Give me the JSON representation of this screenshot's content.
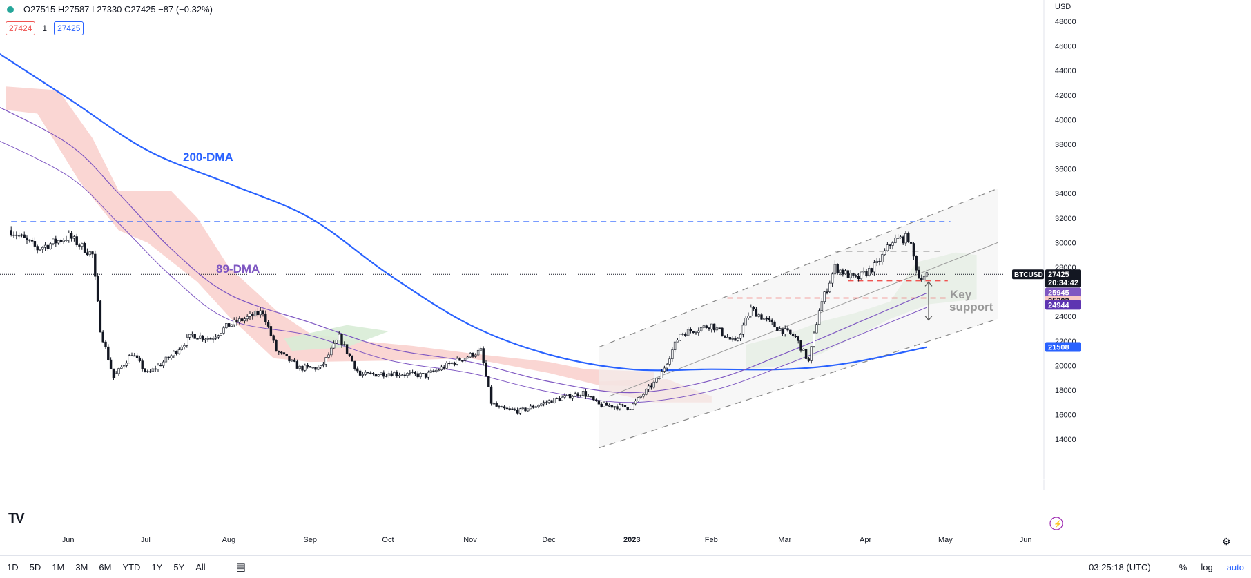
{
  "header": {
    "ohlc": "O27515 H27587 L27330 C27425 −87 (−0.32%)",
    "bid": "27424",
    "qty": "1",
    "ask": "27425"
  },
  "axis": {
    "currency": "USD",
    "price_ticks": [
      "48000",
      "46000",
      "44000",
      "42000",
      "40000",
      "38000",
      "36000",
      "34000",
      "32000",
      "30000",
      "28000",
      "26000",
      "24000",
      "22000",
      "20000",
      "18000",
      "16000",
      "14000"
    ],
    "month_labels": [
      "Jun",
      "Jul",
      "Aug",
      "Sep",
      "Oct",
      "Nov",
      "Dec",
      "2023",
      "Feb",
      "Mar",
      "Apr",
      "May",
      "Jun"
    ]
  },
  "price_tags": {
    "symbol": "BTCUSD",
    "last": "27425",
    "countdown": "20:34:42",
    "tag_89": "25945",
    "tag_cloud": "25302",
    "tag_cloud_b": "24944",
    "tag_200": "21508"
  },
  "annotations": {
    "dma200": "200-DMA",
    "dma89": "89-DMA",
    "key_support": [
      "Key",
      "support"
    ]
  },
  "bottom": {
    "ranges": [
      "1D",
      "5D",
      "1M",
      "3M",
      "6M",
      "YTD",
      "1Y",
      "5Y",
      "All"
    ],
    "clock": "03:25:18 (UTC)",
    "percent": "%",
    "log": "log",
    "auto": "auto"
  },
  "colors": {
    "up": "#26a69a",
    "down": "#131722",
    "dma200": "#2962ff",
    "dma89": "#7e57c2",
    "cloud_bear": "#f8c8c4",
    "cloud_bull": "#d8ecd6",
    "level_blue": "#2962ff",
    "level_red": "#ef5350"
  },
  "chart_data": {
    "type": "candlestick",
    "symbol": "BTCUSD",
    "ylim": [
      13000,
      49000
    ],
    "price_scale": "linear",
    "key_levels": {
      "resistance_blue": 31700,
      "support_red_upper": 26900,
      "support_red_lower": 25500,
      "channel_mid_lower": 29300
    },
    "close_path": [
      [
        "2022-05-10",
        31000
      ],
      [
        "2022-05-20",
        29500
      ],
      [
        "2022-06-01",
        30500
      ],
      [
        "2022-06-10",
        29000
      ],
      [
        "2022-06-13",
        23000
      ],
      [
        "2022-06-18",
        19000
      ],
      [
        "2022-06-25",
        21000
      ],
      [
        "2022-07-01",
        19300
      ],
      [
        "2022-07-10",
        20800
      ],
      [
        "2022-07-18",
        22500
      ],
      [
        "2022-07-25",
        22200
      ],
      [
        "2022-08-01",
        23300
      ],
      [
        "2022-08-14",
        24400
      ],
      [
        "2022-08-19",
        21200
      ],
      [
        "2022-08-28",
        19800
      ],
      [
        "2022-09-05",
        19800
      ],
      [
        "2022-09-12",
        22300
      ],
      [
        "2022-09-20",
        19200
      ],
      [
        "2022-10-01",
        19400
      ],
      [
        "2022-10-15",
        19200
      ],
      [
        "2022-10-26",
        20300
      ],
      [
        "2022-11-05",
        21200
      ],
      [
        "2022-11-09",
        17000
      ],
      [
        "2022-11-12",
        16500
      ],
      [
        "2022-11-20",
        16300
      ],
      [
        "2022-12-01",
        17100
      ],
      [
        "2022-12-14",
        17800
      ],
      [
        "2022-12-20",
        16800
      ],
      [
        "2023-01-01",
        16600
      ],
      [
        "2023-01-12",
        19000
      ],
      [
        "2023-01-20",
        22600
      ],
      [
        "2023-02-01",
        23300
      ],
      [
        "2023-02-10",
        21800
      ],
      [
        "2023-02-16",
        24600
      ],
      [
        "2023-02-25",
        23200
      ],
      [
        "2023-03-05",
        22300
      ],
      [
        "2023-03-10",
        20300
      ],
      [
        "2023-03-14",
        24600
      ],
      [
        "2023-03-20",
        28000
      ],
      [
        "2023-03-28",
        27000
      ],
      [
        "2023-04-05",
        28200
      ],
      [
        "2023-04-11",
        30200
      ],
      [
        "2023-04-17",
        30400
      ],
      [
        "2023-04-21",
        27200
      ],
      [
        "2023-04-24",
        27425
      ]
    ],
    "series": [
      {
        "name": "200-DMA",
        "values": [
          [
            "2022-05-01",
            46000
          ],
          [
            "2022-06-01",
            41700
          ],
          [
            "2022-07-01",
            37500
          ],
          [
            "2022-08-01",
            34800
          ],
          [
            "2022-09-01",
            32000
          ],
          [
            "2022-10-01",
            27400
          ],
          [
            "2022-11-01",
            23300
          ],
          [
            "2022-12-01",
            20900
          ],
          [
            "2023-01-01",
            19700
          ],
          [
            "2023-02-01",
            19700
          ],
          [
            "2023-03-01",
            19700
          ],
          [
            "2023-03-25",
            20200
          ],
          [
            "2023-04-24",
            21500
          ]
        ]
      },
      {
        "name": "89-DMA",
        "values": [
          [
            "2022-05-01",
            41500
          ],
          [
            "2022-06-01",
            38000
          ],
          [
            "2022-06-20",
            34000
          ],
          [
            "2022-07-10",
            29500
          ],
          [
            "2022-08-01",
            25800
          ],
          [
            "2022-09-01",
            23500
          ],
          [
            "2022-10-01",
            21400
          ],
          [
            "2022-11-01",
            20300
          ],
          [
            "2022-12-01",
            18700
          ],
          [
            "2023-01-01",
            17800
          ],
          [
            "2023-02-01",
            18800
          ],
          [
            "2023-03-01",
            21000
          ],
          [
            "2023-04-01",
            23800
          ],
          [
            "2023-04-24",
            25900
          ]
        ]
      }
    ]
  }
}
